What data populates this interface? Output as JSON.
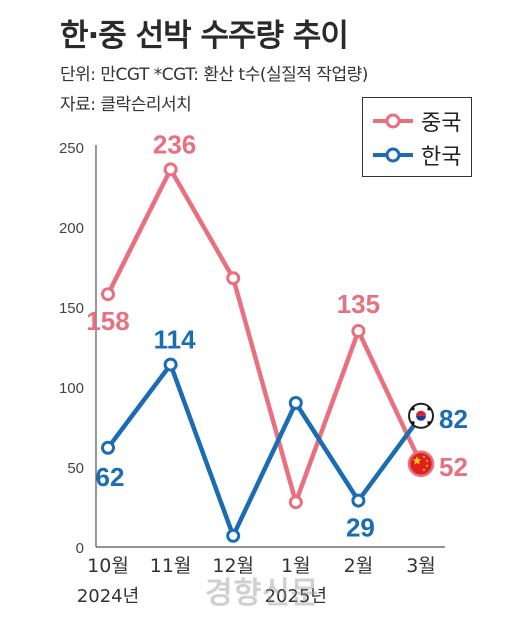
{
  "chart_data": {
    "type": "line",
    "title": "한·중 선박 수주량 추이",
    "unit_note": "단위: 만CGT *CGT: 환산 t수(실질적 작업량)",
    "source": "자료: 클락슨리서치",
    "categories": [
      "10월",
      "11월",
      "12월",
      "1월",
      "2월",
      "3월"
    ],
    "year_labels": [
      {
        "text": "2024년",
        "index": 0
      },
      {
        "text": "2025년",
        "index": 3
      }
    ],
    "ylim": [
      0,
      250
    ],
    "yticks": [
      0,
      50,
      100,
      150,
      200,
      250
    ],
    "series": [
      {
        "name": "중국",
        "color": "#e8707f",
        "values": [
          158,
          236,
          168,
          28,
          135,
          52
        ],
        "labeled": [
          0,
          1,
          4,
          5
        ],
        "labels": [
          "158",
          "236",
          "",
          "",
          "135",
          "52"
        ],
        "end_flag": "china-flag-icon"
      },
      {
        "name": "한국",
        "color": "#1a6cb3",
        "values": [
          62,
          114,
          7,
          90,
          29,
          82
        ],
        "labeled": [
          0,
          1,
          4,
          5
        ],
        "labels": [
          "62",
          "114",
          "",
          "",
          "29",
          "82"
        ],
        "end_flag": "korea-flag-icon"
      }
    ],
    "legend": "top-right",
    "grid": false
  },
  "watermark": "경향신문"
}
